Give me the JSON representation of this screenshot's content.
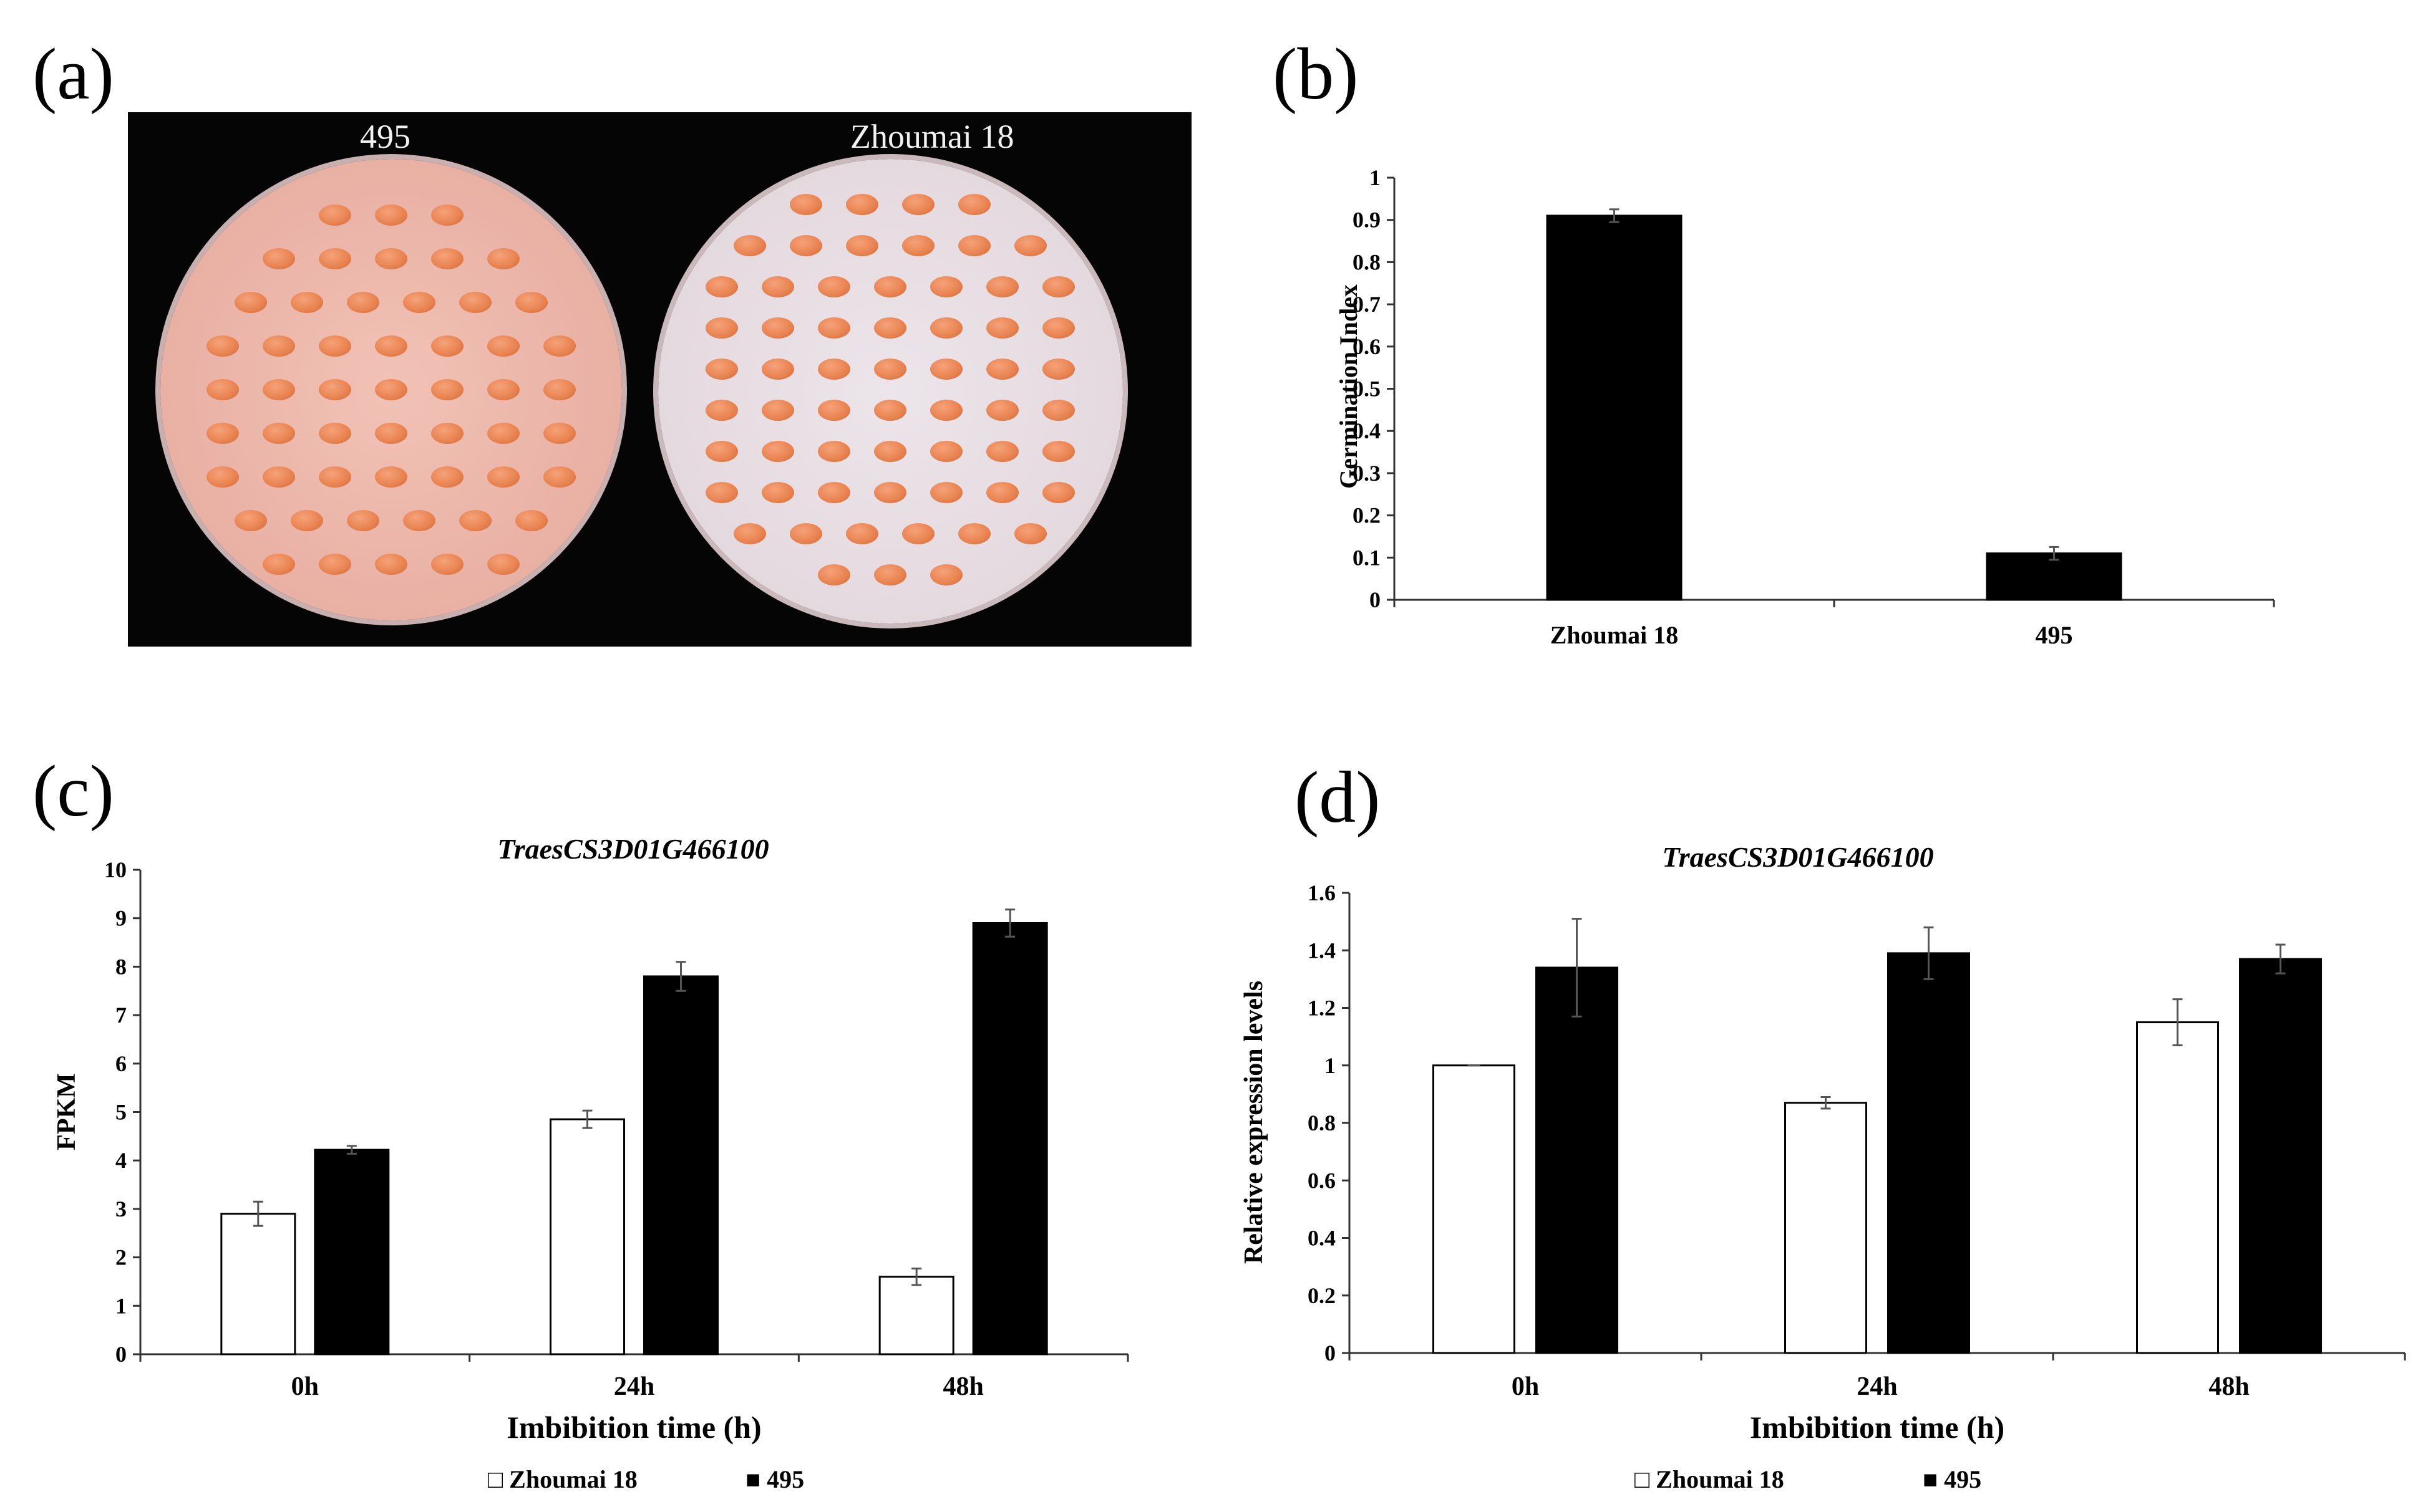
{
  "panels": {
    "a": "(a)",
    "b": "(b)",
    "c": "(c)",
    "d": "(d)"
  },
  "photo": {
    "left_label": "495",
    "right_label": "Zhoumai 18"
  },
  "chart_data": [
    {
      "id": "b",
      "type": "bar",
      "title": "",
      "xlabel": "",
      "ylabel": "Germination Index",
      "categories": [
        "Zhoumai 18",
        "495"
      ],
      "series": [
        {
          "name": "Germination Index",
          "values": [
            0.91,
            0.11
          ],
          "errors": [
            0.015,
            0.015
          ],
          "fill": "#000000"
        }
      ],
      "ylim": [
        0,
        1
      ],
      "yticks": [
        0,
        0.1,
        0.2,
        0.3,
        0.4,
        0.5,
        0.6,
        0.7,
        0.8,
        0.9,
        1
      ],
      "ytick_labels": [
        "0",
        "0.1",
        "0.2",
        "0.3",
        "0.4",
        "0.5",
        "0.6",
        "0.7",
        "0.8",
        "0.9",
        "1"
      ],
      "grid": false
    },
    {
      "id": "c",
      "type": "bar",
      "title": "TraesCS3D01G466100",
      "xlabel": "Imbibition time (h)",
      "ylabel": "FPKM",
      "categories": [
        "0h",
        "24h",
        "48h"
      ],
      "series": [
        {
          "name": "Zhoumai 18",
          "values": [
            2.9,
            4.85,
            1.6
          ],
          "errors": [
            0.25,
            0.18,
            0.17
          ],
          "fill": "#ffffff"
        },
        {
          "name": "495",
          "values": [
            4.22,
            7.8,
            8.9
          ],
          "errors": [
            0.08,
            0.3,
            0.28
          ],
          "fill": "#000000"
        }
      ],
      "ylim": [
        0,
        10
      ],
      "yticks": [
        0,
        1,
        2,
        3,
        4,
        5,
        6,
        7,
        8,
        9,
        10
      ],
      "ytick_labels": [
        "0",
        "1",
        "2",
        "3",
        "4",
        "5",
        "6",
        "7",
        "8",
        "9",
        "10"
      ],
      "legend": [
        "□ Zhoumai 18",
        "■ 495"
      ],
      "legend_position": "bottom",
      "grid": false
    },
    {
      "id": "d",
      "type": "bar",
      "title": "TraesCS3D01G466100",
      "xlabel": "Imbibition time (h)",
      "ylabel": "Relative expression levels",
      "categories": [
        "0h",
        "24h",
        "48h"
      ],
      "series": [
        {
          "name": "Zhoumai 18",
          "values": [
            1.0,
            0.87,
            1.15
          ],
          "errors": [
            0.0,
            0.02,
            0.08
          ],
          "fill": "#ffffff"
        },
        {
          "name": "495",
          "values": [
            1.34,
            1.39,
            1.37
          ],
          "errors": [
            0.17,
            0.09,
            0.05
          ],
          "fill": "#000000"
        }
      ],
      "ylim": [
        0,
        1.6
      ],
      "yticks": [
        0,
        0.2,
        0.4,
        0.6,
        0.8,
        1.0,
        1.2,
        1.4,
        1.6
      ],
      "ytick_labels": [
        "0",
        "0.2",
        "0.4",
        "0.6",
        "0.8",
        "1",
        "1.2",
        "1.4",
        "1.6"
      ],
      "legend": [
        "□ Zhoumai 18",
        "■ 495"
      ],
      "legend_position": "bottom",
      "grid": false
    }
  ]
}
